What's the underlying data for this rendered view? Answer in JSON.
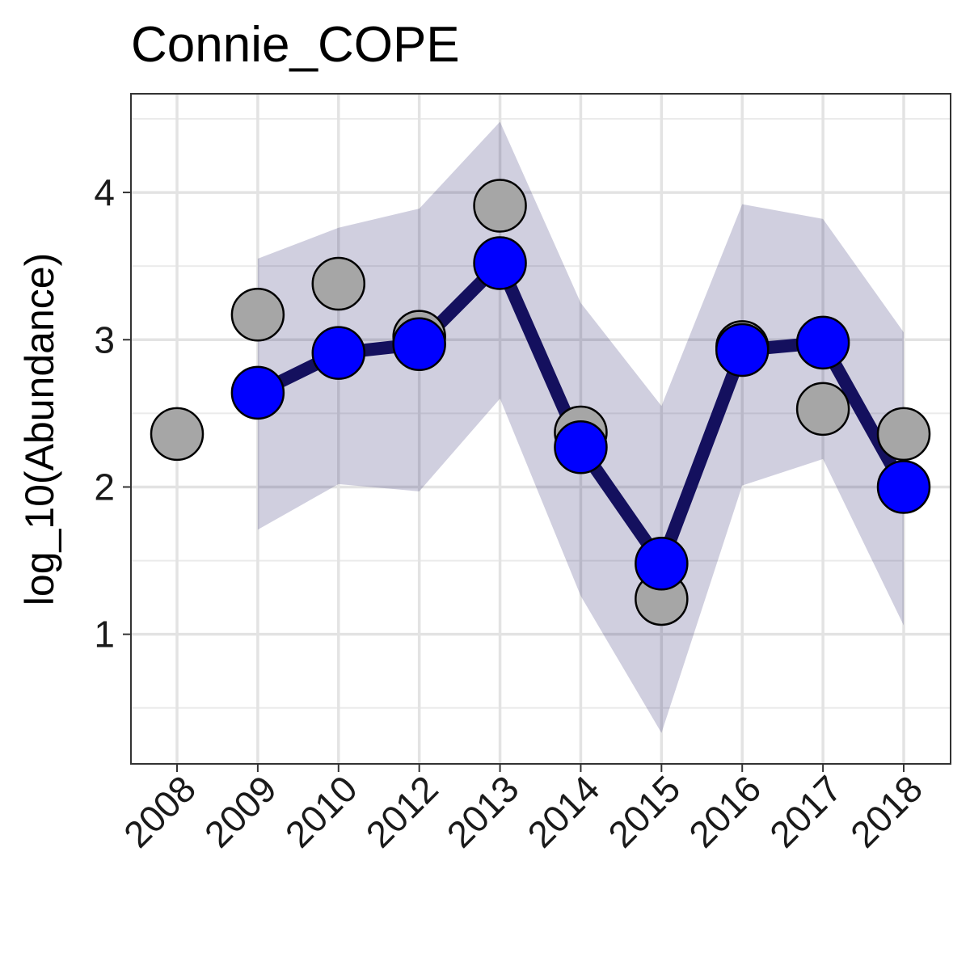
{
  "chart_data": {
    "type": "line",
    "title": "Connie_COPE",
    "xlabel": "",
    "ylabel": "log_10(Abundance)",
    "categories": [
      "2008",
      "2009",
      "2010",
      "2012",
      "2013",
      "2014",
      "2015",
      "2016",
      "2017",
      "2018"
    ],
    "y_ticks": [
      1,
      2,
      3,
      4
    ],
    "ylim": [
      0.12,
      4.67
    ],
    "grid": true,
    "series": [
      {
        "role": "observed",
        "color": "#a6a6a6",
        "values": [
          2.36,
          3.17,
          3.38,
          3.02,
          3.91,
          2.37,
          1.24,
          2.95,
          2.53,
          2.36
        ]
      },
      {
        "role": "fitted",
        "color": "#0000ff",
        "line_color": "#14105e",
        "values": [
          null,
          2.64,
          2.91,
          2.97,
          3.52,
          2.27,
          1.48,
          2.93,
          2.98,
          2.0
        ]
      },
      {
        "role": "interval",
        "color": "#14105e",
        "lower": [
          null,
          1.71,
          2.02,
          1.97,
          2.6,
          1.26,
          0.33,
          2.01,
          2.19,
          1.06
        ],
        "upper": [
          null,
          3.55,
          3.76,
          3.89,
          4.48,
          3.25,
          2.55,
          3.92,
          3.82,
          3.05
        ]
      }
    ]
  }
}
